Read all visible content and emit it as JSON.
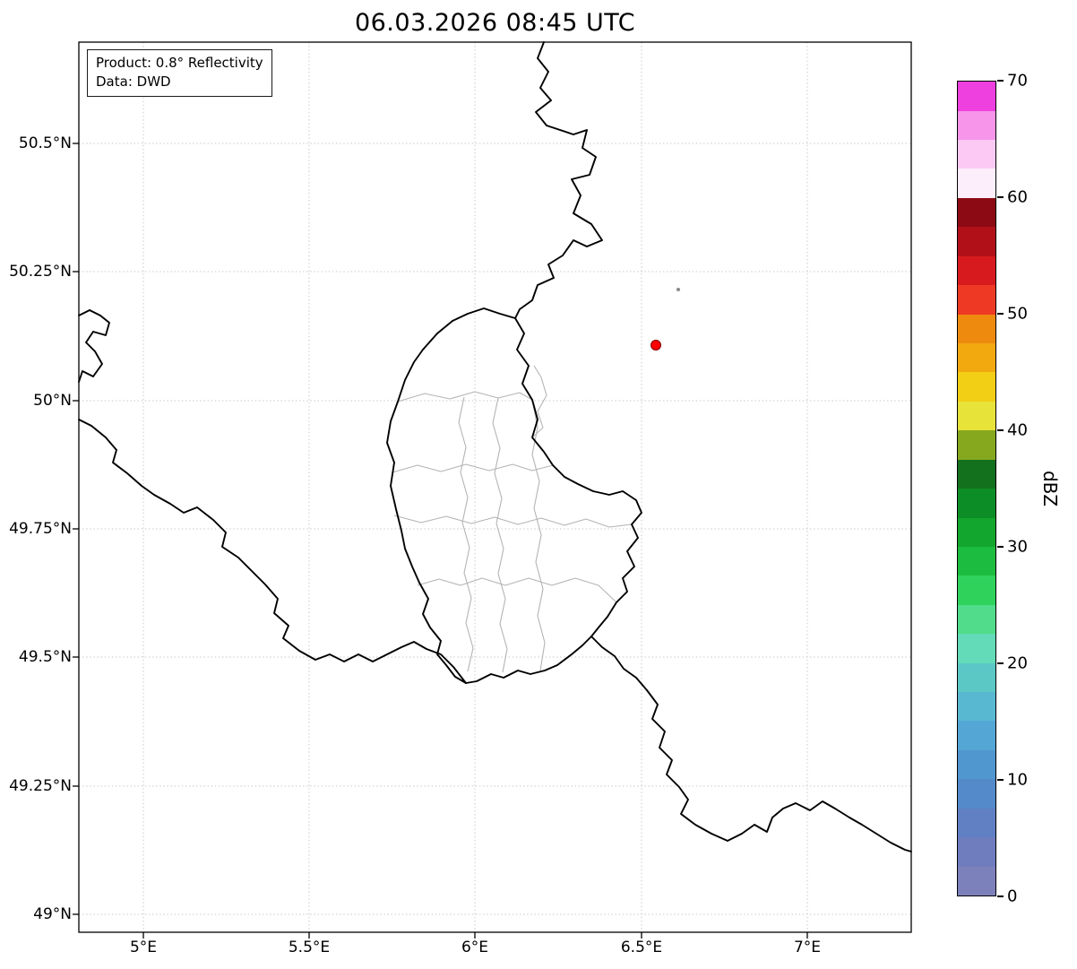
{
  "title": "06.03.2026 08:45 UTC",
  "info_box": {
    "product": "Product: 0.8° Reflectivity",
    "data_source": "Data: DWD"
  },
  "axes": {
    "x_ticks": [
      "5°E",
      "5.5°E",
      "6°E",
      "6.5°E",
      "7°E"
    ],
    "y_ticks": [
      "50.5°N",
      "50.25°N",
      "50°N",
      "49.75°N",
      "49.5°N",
      "49.25°N",
      "49°N"
    ]
  },
  "map": {
    "border_color": "#000000",
    "district_border_color": "#b4b4b4",
    "grid_color": "#c9c9c9",
    "marker_color": "#ff0000"
  },
  "colorbar": {
    "label": "dBZ",
    "vmin": 0,
    "vmax": 70,
    "tick_values": [
      0,
      10,
      20,
      30,
      40,
      50,
      60,
      70
    ],
    "colors_bottom_to_top": [
      "#7d81bb",
      "#6f7cbe",
      "#6180c4",
      "#548aca",
      "#5096cf",
      "#54a6d4",
      "#58b8d2",
      "#5cc8c6",
      "#63dab8",
      "#50dc8b",
      "#2fd35c",
      "#1cbc40",
      "#12a62f",
      "#0d8d25",
      "#13701d",
      "#85a81e",
      "#e8e339",
      "#f2ce14",
      "#f1a90f",
      "#ee8b0f",
      "#ee3a24",
      "#d71a1e",
      "#b21019",
      "#8b0a13",
      "#fdeefb",
      "#fbc9f3",
      "#f795ea",
      "#ee3fdf"
    ]
  }
}
